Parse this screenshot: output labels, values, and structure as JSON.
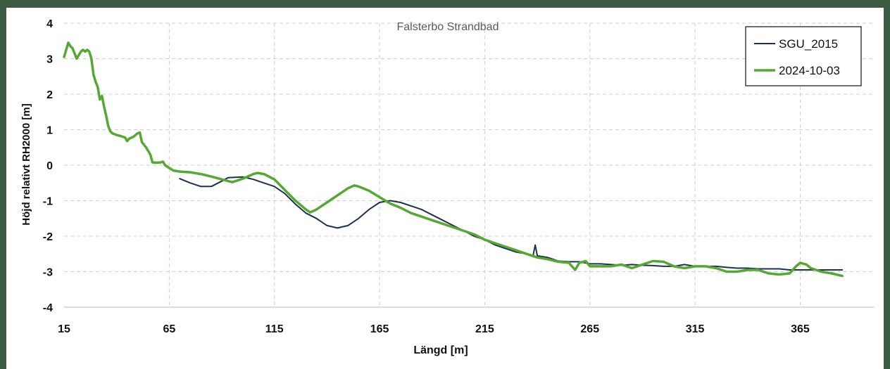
{
  "chart_data": {
    "type": "line",
    "title": "Falsterbo Strandbad",
    "xlabel": "Längd [m]",
    "ylabel": "Höjd relativt RH2000 [m]",
    "xlim": [
      15,
      400
    ],
    "ylim": [
      -4,
      4
    ],
    "x_ticks": [
      15,
      65,
      115,
      165,
      215,
      265,
      315,
      365
    ],
    "y_ticks": [
      4,
      3,
      2,
      1,
      0,
      -1,
      -2,
      -3,
      -4
    ],
    "grid": "dashed-horizontal-and-vertical",
    "legend_position": "top-right",
    "series": [
      {
        "name": "SGU_2015",
        "color": "#1c3150",
        "points": [
          [
            70,
            -0.38
          ],
          [
            75,
            -0.5
          ],
          [
            80,
            -0.6
          ],
          [
            85,
            -0.6
          ],
          [
            90,
            -0.45
          ],
          [
            93,
            -0.35
          ],
          [
            100,
            -0.33
          ],
          [
            105,
            -0.4
          ],
          [
            110,
            -0.5
          ],
          [
            115,
            -0.6
          ],
          [
            120,
            -0.8
          ],
          [
            125,
            -1.1
          ],
          [
            130,
            -1.35
          ],
          [
            135,
            -1.5
          ],
          [
            140,
            -1.7
          ],
          [
            145,
            -1.77
          ],
          [
            150,
            -1.7
          ],
          [
            155,
            -1.5
          ],
          [
            160,
            -1.25
          ],
          [
            165,
            -1.05
          ],
          [
            170,
            -1.0
          ],
          [
            175,
            -1.05
          ],
          [
            180,
            -1.15
          ],
          [
            185,
            -1.25
          ],
          [
            190,
            -1.4
          ],
          [
            195,
            -1.55
          ],
          [
            200,
            -1.7
          ],
          [
            205,
            -1.85
          ],
          [
            210,
            -2.0
          ],
          [
            215,
            -2.1
          ],
          [
            220,
            -2.25
          ],
          [
            225,
            -2.35
          ],
          [
            230,
            -2.45
          ],
          [
            235,
            -2.5
          ],
          [
            238,
            -2.55
          ],
          [
            239,
            -2.25
          ],
          [
            240,
            -2.55
          ],
          [
            245,
            -2.6
          ],
          [
            250,
            -2.7
          ],
          [
            255,
            -2.72
          ],
          [
            260,
            -2.72
          ],
          [
            265,
            -2.78
          ],
          [
            270,
            -2.78
          ],
          [
            275,
            -2.8
          ],
          [
            280,
            -2.82
          ],
          [
            285,
            -2.8
          ],
          [
            290,
            -2.82
          ],
          [
            295,
            -2.83
          ],
          [
            300,
            -2.85
          ],
          [
            305,
            -2.85
          ],
          [
            310,
            -2.8
          ],
          [
            315,
            -2.85
          ],
          [
            320,
            -2.85
          ],
          [
            325,
            -2.85
          ],
          [
            330,
            -2.88
          ],
          [
            335,
            -2.9
          ],
          [
            340,
            -2.9
          ],
          [
            345,
            -2.92
          ],
          [
            350,
            -2.92
          ],
          [
            355,
            -2.92
          ],
          [
            360,
            -2.95
          ],
          [
            365,
            -2.95
          ],
          [
            370,
            -2.95
          ],
          [
            375,
            -2.95
          ],
          [
            380,
            -2.95
          ],
          [
            385,
            -2.95
          ]
        ]
      },
      {
        "name": "2024-10-03",
        "color": "#55a832",
        "points": [
          [
            15,
            3.05
          ],
          [
            16,
            3.25
          ],
          [
            17,
            3.45
          ],
          [
            18,
            3.35
          ],
          [
            19,
            3.3
          ],
          [
            20,
            3.15
          ],
          [
            21,
            3.0
          ],
          [
            22,
            3.1
          ],
          [
            23,
            3.2
          ],
          [
            24,
            3.25
          ],
          [
            25,
            3.2
          ],
          [
            26,
            3.25
          ],
          [
            27,
            3.2
          ],
          [
            28,
            3.0
          ],
          [
            29,
            2.55
          ],
          [
            30,
            2.35
          ],
          [
            31,
            2.2
          ],
          [
            32,
            1.85
          ],
          [
            33,
            1.95
          ],
          [
            34,
            1.65
          ],
          [
            35,
            1.4
          ],
          [
            36,
            1.1
          ],
          [
            37,
            0.95
          ],
          [
            38,
            0.9
          ],
          [
            40,
            0.85
          ],
          [
            42,
            0.82
          ],
          [
            44,
            0.78
          ],
          [
            45,
            0.68
          ],
          [
            46,
            0.75
          ],
          [
            48,
            0.8
          ],
          [
            50,
            0.9
          ],
          [
            51,
            0.92
          ],
          [
            52,
            0.65
          ],
          [
            54,
            0.5
          ],
          [
            56,
            0.3
          ],
          [
            57,
            0.08
          ],
          [
            59,
            0.07
          ],
          [
            61,
            0.08
          ],
          [
            62,
            0.1
          ],
          [
            63,
            0.0
          ],
          [
            65,
            -0.08
          ],
          [
            67,
            -0.15
          ],
          [
            70,
            -0.18
          ],
          [
            75,
            -0.2
          ],
          [
            80,
            -0.25
          ],
          [
            85,
            -0.32
          ],
          [
            90,
            -0.4
          ],
          [
            95,
            -0.48
          ],
          [
            100,
            -0.38
          ],
          [
            105,
            -0.25
          ],
          [
            107,
            -0.22
          ],
          [
            110,
            -0.25
          ],
          [
            115,
            -0.4
          ],
          [
            120,
            -0.7
          ],
          [
            125,
            -1.0
          ],
          [
            130,
            -1.25
          ],
          [
            132,
            -1.33
          ],
          [
            135,
            -1.25
          ],
          [
            140,
            -1.05
          ],
          [
            145,
            -0.85
          ],
          [
            150,
            -0.65
          ],
          [
            153,
            -0.57
          ],
          [
            155,
            -0.6
          ],
          [
            160,
            -0.72
          ],
          [
            165,
            -0.9
          ],
          [
            170,
            -1.08
          ],
          [
            175,
            -1.2
          ],
          [
            180,
            -1.35
          ],
          [
            185,
            -1.45
          ],
          [
            190,
            -1.55
          ],
          [
            195,
            -1.65
          ],
          [
            200,
            -1.75
          ],
          [
            205,
            -1.85
          ],
          [
            210,
            -1.95
          ],
          [
            215,
            -2.1
          ],
          [
            220,
            -2.2
          ],
          [
            225,
            -2.3
          ],
          [
            230,
            -2.4
          ],
          [
            235,
            -2.5
          ],
          [
            240,
            -2.6
          ],
          [
            245,
            -2.65
          ],
          [
            250,
            -2.72
          ],
          [
            255,
            -2.75
          ],
          [
            258,
            -2.95
          ],
          [
            260,
            -2.75
          ],
          [
            263,
            -2.7
          ],
          [
            265,
            -2.85
          ],
          [
            270,
            -2.85
          ],
          [
            275,
            -2.85
          ],
          [
            280,
            -2.8
          ],
          [
            285,
            -2.9
          ],
          [
            290,
            -2.8
          ],
          [
            295,
            -2.7
          ],
          [
            300,
            -2.72
          ],
          [
            305,
            -2.85
          ],
          [
            310,
            -2.9
          ],
          [
            315,
            -2.85
          ],
          [
            320,
            -2.85
          ],
          [
            325,
            -2.9
          ],
          [
            330,
            -3.0
          ],
          [
            335,
            -3.0
          ],
          [
            340,
            -2.95
          ],
          [
            345,
            -2.95
          ],
          [
            350,
            -3.05
          ],
          [
            355,
            -3.08
          ],
          [
            360,
            -3.05
          ],
          [
            363,
            -2.85
          ],
          [
            365,
            -2.75
          ],
          [
            368,
            -2.8
          ],
          [
            370,
            -2.9
          ],
          [
            375,
            -3.0
          ],
          [
            380,
            -3.05
          ],
          [
            385,
            -3.12
          ]
        ]
      }
    ]
  }
}
